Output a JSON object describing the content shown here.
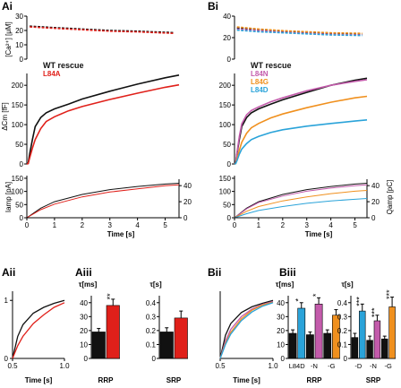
{
  "colors": {
    "wt": "#111111",
    "l84a": "#e0201a",
    "l84n": "#c35bab",
    "l84g": "#f0901e",
    "l84d": "#2aa3d9",
    "accent": "#7a1e1e"
  },
  "panels": {
    "ai_label": "Ai",
    "bi_label": "Bi",
    "aii_label": "Aii",
    "aiii_label": "Aiii",
    "bii_label": "Bii",
    "biii_label": "Biii"
  },
  "chart_data": [
    {
      "id": "Ai",
      "type": "line",
      "subplots": [
        {
          "name": "calcium",
          "ylabel": "[Ca²⁺] [μM]",
          "yticks": [
            "30",
            "20",
            "10",
            "0"
          ],
          "ylim": [
            0,
            30
          ],
          "xlim": [
            0,
            5.5
          ],
          "series": [
            {
              "name": "WT rescue",
              "x": [
                0.1,
                1,
                2,
                3,
                4,
                5.3
              ],
              "y": [
                23,
                22,
                21,
                20,
                19.5,
                18.5
              ]
            },
            {
              "name": "L84A",
              "x": [
                0.1,
                1,
                2,
                3,
                4,
                5.3
              ],
              "y": [
                22.5,
                21.5,
                20.5,
                19.5,
                19,
                18
              ]
            }
          ]
        },
        {
          "name": "capacitance",
          "ylabel": "ΔCm [fF]",
          "yticks": [
            "200",
            "150",
            "100",
            "50",
            "0"
          ],
          "ylim": [
            0,
            230
          ],
          "xlim": [
            0,
            5.5
          ],
          "legend": [
            "WT rescue",
            "L84A"
          ],
          "series": [
            {
              "name": "WT rescue",
              "x": [
                0,
                0.05,
                0.1,
                0.2,
                0.3,
                0.5,
                0.7,
                1.0,
                1.5,
                2,
                3,
                4,
                5,
                5.5
              ],
              "y": [
                0,
                2,
                25,
                62,
                95,
                118,
                130,
                140,
                152,
                165,
                185,
                203,
                219,
                226
              ]
            },
            {
              "name": "L84A",
              "x": [
                0,
                0.05,
                0.1,
                0.2,
                0.3,
                0.5,
                0.7,
                1.0,
                1.5,
                2,
                3,
                4,
                5,
                5.5
              ],
              "y": [
                0,
                1,
                15,
                40,
                62,
                90,
                108,
                120,
                135,
                146,
                164,
                180,
                195,
                201
              ]
            }
          ]
        },
        {
          "name": "amperometry",
          "ylabel": "Iamp [pA]",
          "yticks": [
            "150",
            "100",
            "50",
            "0"
          ],
          "ylim": [
            0,
            160
          ],
          "y2ticks": [
            "40",
            "20",
            "0"
          ],
          "y2lim": [
            0,
            48
          ],
          "xlabel": "Time [s]",
          "xticks": [
            "0",
            "1",
            "2",
            "3",
            "4",
            "5"
          ],
          "xlim": [
            0,
            5.5
          ],
          "series": [
            {
              "name": "WT rescue charge",
              "x": [
                0,
                0.5,
                1,
                2,
                3,
                4,
                5,
                5.5
              ],
              "y": [
                0,
                12,
                20,
                29,
                35,
                39,
                42,
                43
              ]
            },
            {
              "name": "L84A charge",
              "x": [
                0,
                0.5,
                1,
                2,
                3,
                4,
                5,
                5.5
              ],
              "y": [
                0,
                10,
                17,
                26,
                32,
                36,
                40,
                41
              ]
            }
          ]
        }
      ]
    },
    {
      "id": "Bi",
      "type": "line",
      "subplots": [
        {
          "name": "calcium",
          "yticks": [
            "40",
            "20",
            "0"
          ],
          "ylim": [
            0,
            40
          ],
          "xlim": [
            0,
            5.5
          ],
          "series": [
            {
              "name": "WT rescue",
              "x": [
                0.1,
                1,
                2,
                3,
                4,
                5.3
              ],
              "y": [
                29,
                27.5,
                26,
                25,
                24,
                23.5
              ]
            },
            {
              "name": "L84N",
              "x": [
                0.1,
                1,
                2,
                3,
                4,
                5.3
              ],
              "y": [
                28,
                26.5,
                25,
                24,
                23,
                22.5
              ]
            },
            {
              "name": "L84G",
              "x": [
                0.1,
                1,
                2,
                3,
                4,
                5.3
              ],
              "y": [
                30,
                28,
                26.5,
                25.5,
                24.5,
                24
              ]
            },
            {
              "name": "L84D",
              "x": [
                0.1,
                1,
                2,
                3,
                4,
                5.3
              ],
              "y": [
                27,
                25.5,
                24.5,
                23.5,
                22.5,
                22
              ]
            }
          ]
        },
        {
          "name": "capacitance",
          "yticks": [
            "200",
            "150",
            "100",
            "50",
            "0"
          ],
          "ylim": [
            0,
            230
          ],
          "xlim": [
            0,
            5.5
          ],
          "legend": [
            "WT rescue",
            "L84N",
            "L84G",
            "L84D"
          ],
          "series": [
            {
              "name": "WT rescue",
              "x": [
                0,
                0.05,
                0.1,
                0.2,
                0.3,
                0.5,
                0.7,
                1.0,
                1.5,
                2,
                3,
                4,
                5,
                5.5
              ],
              "y": [
                0,
                2,
                25,
                62,
                95,
                118,
                130,
                140,
                152,
                163,
                182,
                200,
                213,
                218
              ]
            },
            {
              "name": "L84N",
              "x": [
                0,
                0.05,
                0.1,
                0.2,
                0.3,
                0.5,
                0.7,
                1.0,
                1.5,
                2,
                3,
                4,
                5,
                5.5
              ],
              "y": [
                0,
                2,
                28,
                70,
                102,
                125,
                136,
                145,
                158,
                168,
                186,
                200,
                210,
                214
              ]
            },
            {
              "name": "L84G",
              "x": [
                0,
                0.05,
                0.1,
                0.2,
                0.3,
                0.5,
                0.7,
                1.0,
                1.5,
                2,
                3,
                4,
                5,
                5.5
              ],
              "y": [
                0,
                1,
                12,
                35,
                55,
                78,
                92,
                103,
                117,
                127,
                143,
                157,
                168,
                172
              ]
            },
            {
              "name": "L84D",
              "x": [
                0,
                0.05,
                0.1,
                0.2,
                0.3,
                0.5,
                0.7,
                1.0,
                1.5,
                2,
                3,
                4,
                5,
                5.5
              ],
              "y": [
                0,
                1,
                8,
                25,
                38,
                52,
                62,
                70,
                80,
                87,
                96,
                103,
                109,
                112
              ]
            }
          ]
        },
        {
          "name": "amperometry",
          "yticks": [
            "150",
            "100",
            "50",
            "0"
          ],
          "ylim": [
            0,
            160
          ],
          "y2label": "Qamp [pC]",
          "y2ticks": [
            "40",
            "20",
            "0"
          ],
          "y2lim": [
            0,
            48
          ],
          "xlabel": "Time [s]",
          "xticks": [
            "0",
            "1",
            "2",
            "3",
            "4",
            "5"
          ],
          "xlim": [
            0,
            5.5
          ],
          "series": [
            {
              "name": "WT rescue charge",
              "x": [
                0,
                0.5,
                1,
                2,
                3,
                4,
                5,
                5.5
              ],
              "y": [
                0,
                12,
                20,
                29,
                35,
                39,
                42,
                43
              ]
            },
            {
              "name": "L84N charge",
              "x": [
                0,
                0.5,
                1,
                2,
                3,
                4,
                5,
                5.5
              ],
              "y": [
                0,
                11,
                19,
                27,
                33,
                37,
                40,
                41
              ]
            },
            {
              "name": "L84G charge",
              "x": [
                0,
                0.5,
                1,
                2,
                3,
                4,
                5,
                5.5
              ],
              "y": [
                0,
                8,
                14,
                21,
                26,
                30,
                33,
                34
              ]
            },
            {
              "name": "L84D charge",
              "x": [
                0,
                0.5,
                1,
                2,
                3,
                4,
                5,
                5.5
              ],
              "y": [
                0,
                5,
                9,
                14,
                18,
                21,
                23,
                24
              ]
            }
          ]
        }
      ]
    },
    {
      "id": "Aii",
      "type": "line",
      "xlabel": "Time [s]",
      "xticks": [
        "0.5",
        "1.0"
      ],
      "xlim": [
        0.5,
        1.0
      ],
      "ylim": [
        0,
        1.05
      ],
      "yticks": [
        "1",
        "0"
      ],
      "series": [
        {
          "name": "WT rescue",
          "x": [
            0.5,
            0.55,
            0.6,
            0.7,
            0.8,
            0.9,
            1.0
          ],
          "y": [
            0,
            0.38,
            0.58,
            0.78,
            0.88,
            0.95,
            1.0
          ]
        },
        {
          "name": "L84A",
          "x": [
            0.5,
            0.55,
            0.6,
            0.7,
            0.8,
            0.9,
            1.0
          ],
          "y": [
            0,
            0.22,
            0.38,
            0.6,
            0.75,
            0.88,
            0.96
          ]
        }
      ]
    },
    {
      "id": "Aiii",
      "type": "bar",
      "groups": [
        {
          "name": "RRP",
          "ylabel": "τ[ms]",
          "yticks": [
            "40",
            "30",
            "20",
            "10",
            "0"
          ],
          "ylim": [
            0,
            45
          ],
          "categories": [
            "WT rescue",
            "L84A"
          ],
          "values": [
            19,
            38
          ],
          "errors": [
            2.5,
            4.5
          ],
          "significance": [
            "",
            "**"
          ]
        },
        {
          "name": "SRP",
          "ylabel": "τ[s]",
          "yticks": [
            "0.4",
            "0.3",
            "0.2",
            "0.1",
            "0"
          ],
          "ylim": [
            0,
            0.45
          ],
          "categories": [
            "WT rescue",
            "L84A"
          ],
          "values": [
            0.19,
            0.29
          ],
          "errors": [
            0.03,
            0.05
          ],
          "significance": [
            "",
            ""
          ]
        }
      ]
    },
    {
      "id": "Bii",
      "type": "line",
      "xlabel": "Time [s]",
      "xticks": [
        "0.5",
        "1.0"
      ],
      "xlim": [
        0.5,
        1.0
      ],
      "ylim": [
        0,
        1.05
      ],
      "series": [
        {
          "name": "WT rescue",
          "x": [
            0.5,
            0.55,
            0.6,
            0.7,
            0.8,
            0.9,
            1.0
          ],
          "y": [
            0,
            0.4,
            0.6,
            0.79,
            0.89,
            0.95,
            1.0
          ]
        },
        {
          "name": "L84N",
          "x": [
            0.5,
            0.55,
            0.6,
            0.7,
            0.8,
            0.9,
            1.0
          ],
          "y": [
            0,
            0.3,
            0.5,
            0.72,
            0.85,
            0.93,
            0.98
          ]
        },
        {
          "name": "L84G",
          "x": [
            0.5,
            0.55,
            0.6,
            0.7,
            0.8,
            0.9,
            1.0
          ],
          "y": [
            0,
            0.26,
            0.45,
            0.68,
            0.83,
            0.92,
            0.97
          ]
        },
        {
          "name": "L84D",
          "x": [
            0.5,
            0.55,
            0.6,
            0.7,
            0.8,
            0.9,
            1.0
          ],
          "y": [
            0,
            0.24,
            0.42,
            0.65,
            0.8,
            0.9,
            0.96
          ]
        }
      ]
    },
    {
      "id": "Biii",
      "type": "bar",
      "groups": [
        {
          "name": "RRP",
          "ylabel": "τ[ms]",
          "yticks": [
            "40",
            "30",
            "20",
            "10",
            "0"
          ],
          "ylim": [
            0,
            45
          ],
          "categories": [
            "WT rescue",
            "L84D",
            "WT rescue",
            "L84N",
            "WT rescue",
            "L84G"
          ],
          "tick_labels": [
            "L84D",
            "-N",
            "-G"
          ],
          "values": [
            18,
            36,
            17,
            39,
            18,
            31
          ],
          "errors": [
            2.5,
            4,
            2,
            4.5,
            2.5,
            4
          ],
          "significance": [
            "",
            "*",
            "",
            "*",
            "",
            ""
          ]
        },
        {
          "name": "SRP",
          "ylabel": "τ[s]",
          "yticks": [
            "0.4",
            "0.3",
            "0.2",
            "0.1",
            "0"
          ],
          "ylim": [
            0,
            0.45
          ],
          "categories": [
            "WT rescue",
            "L84D",
            "WT rescue",
            "L84N",
            "WT rescue",
            "L84G"
          ],
          "tick_labels": [
            "-D",
            "-N",
            "-G"
          ],
          "values": [
            0.15,
            0.34,
            0.13,
            0.27,
            0.14,
            0.37
          ],
          "errors": [
            0.03,
            0.05,
            0.03,
            0.04,
            0.02,
            0.07
          ],
          "significance": [
            "",
            "***",
            "",
            "***",
            "",
            "***"
          ]
        }
      ]
    }
  ]
}
